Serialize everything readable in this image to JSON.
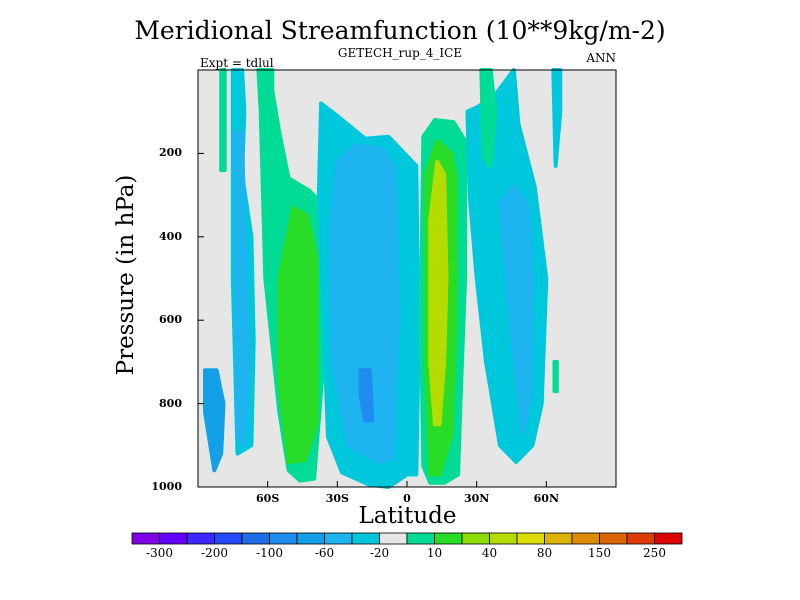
{
  "chart_data": {
    "type": "heatmap",
    "title": "Meridional Streamfunction (10**9kg/m-2)",
    "subtitle": "GETECH_rup_4_ICE",
    "left_label": "Expt = tdlul",
    "right_label": "ANN",
    "xlabel": "Latitude",
    "ylabel": "Pressure (in hPa)",
    "xlim": [
      -90,
      90
    ],
    "ylim": [
      0,
      1000
    ],
    "y_inverted": true,
    "x_ticks": [
      {
        "value": -60,
        "label": "60S"
      },
      {
        "value": -30,
        "label": "30S"
      },
      {
        "value": 0,
        "label": "0"
      },
      {
        "value": 30,
        "label": "30N"
      },
      {
        "value": 60,
        "label": "60N"
      }
    ],
    "y_ticks": [
      {
        "value": 200,
        "label": "200"
      },
      {
        "value": 400,
        "label": "400"
      },
      {
        "value": 600,
        "label": "600"
      },
      {
        "value": 800,
        "label": "800"
      },
      {
        "value": 1000,
        "label": "1000"
      }
    ],
    "background_color": "#e6e6e6",
    "colorbar": {
      "colors": [
        "#7d00e6",
        "#6400ff",
        "#3c28ff",
        "#2348ff",
        "#1e6ee6",
        "#1e8cf0",
        "#14a0e6",
        "#1eb4f0",
        "#00c8dc",
        "#e6e6e6",
        "#00dc96",
        "#28dc28",
        "#8cdc00",
        "#b4dc00",
        "#dcdc00",
        "#dcb400",
        "#dc8c00",
        "#dc6400",
        "#dc3c00",
        "#dc0000"
      ],
      "labels": [
        {
          "edge": 1,
          "label": "-300"
        },
        {
          "edge": 3,
          "label": "-200"
        },
        {
          "edge": 5,
          "label": "-100"
        },
        {
          "edge": 7,
          "label": "-60"
        },
        {
          "edge": 9,
          "label": "-20"
        },
        {
          "edge": 11,
          "label": "10"
        },
        {
          "edge": 13,
          "label": "40"
        },
        {
          "edge": 15,
          "label": "80"
        },
        {
          "edge": 17,
          "label": "150"
        },
        {
          "edge": 19,
          "label": "250"
        }
      ]
    },
    "regions": [
      {
        "name": "sh-polar-cell-outer",
        "color": "#14a0e6",
        "x": [
          -87,
          -82,
          -79,
          -80,
          -83,
          -87
        ],
        "p": [
          720,
          720,
          800,
          920,
          960,
          820
        ]
      },
      {
        "name": "sh-polar-cell",
        "color": "#00c8dc",
        "x": [
          -75,
          -71,
          -70,
          -71,
          -67,
          -66,
          -67,
          -73,
          -75
        ],
        "p": [
          0,
          0,
          100,
          250,
          400,
          650,
          900,
          920,
          500
        ]
      },
      {
        "name": "sh-polar-core",
        "color": "#1eb4f0",
        "x": [
          -74,
          -71,
          -70,
          -68,
          -70,
          -73
        ],
        "p": [
          150,
          150,
          400,
          700,
          900,
          880
        ]
      },
      {
        "name": "sh-ferrel-cell",
        "color": "#00dc96",
        "x": [
          -64,
          -58,
          -58,
          -55,
          -51,
          -42,
          -37,
          -36,
          -40,
          -46,
          -51,
          -55,
          -61,
          -63
        ],
        "p": [
          0,
          0,
          50,
          150,
          260,
          290,
          320,
          700,
          980,
          985,
          960,
          820,
          500,
          100
        ]
      },
      {
        "name": "sh-ferrel-core",
        "color": "#28dc28",
        "x": [
          -55,
          -49,
          -43,
          -39,
          -39,
          -44,
          -51,
          -55
        ],
        "p": [
          500,
          330,
          350,
          450,
          850,
          935,
          940,
          750
        ]
      },
      {
        "name": "sh-hadley-cell",
        "color": "#00c8dc",
        "x": [
          -37,
          -30,
          -18,
          -8,
          -2,
          4,
          5,
          4,
          0,
          -8,
          -16,
          -28,
          -34,
          -38
        ],
        "p": [
          80,
          110,
          165,
          160,
          195,
          230,
          650,
          970,
          970,
          1000,
          995,
          965,
          880,
          300
        ]
      },
      {
        "name": "sh-hadley-core",
        "color": "#1eb4f0",
        "x": [
          -30,
          -22,
          -10,
          -5,
          -4,
          -6,
          -12,
          -25,
          -32,
          -33
        ],
        "p": [
          220,
          180,
          190,
          240,
          600,
          930,
          940,
          900,
          700,
          400
        ]
      },
      {
        "name": "sh-hadley-max",
        "color": "#1e8cf0",
        "x": [
          -20,
          -16,
          -15,
          -18,
          -20
        ],
        "p": [
          720,
          720,
          840,
          840,
          780
        ]
      },
      {
        "name": "nh-hadley-cell",
        "color": "#00dc96",
        "x": [
          7,
          12,
          20,
          25,
          25,
          23,
          22,
          16,
          10,
          7,
          6
        ],
        "p": [
          160,
          120,
          125,
          170,
          500,
          800,
          970,
          990,
          990,
          950,
          600
        ]
      },
      {
        "name": "nh-hadley-core",
        "color": "#28dc28",
        "x": [
          8,
          13,
          19,
          21,
          21,
          19,
          14,
          10,
          8
        ],
        "p": [
          250,
          170,
          200,
          260,
          600,
          880,
          970,
          970,
          700
        ]
      },
      {
        "name": "nh-hadley-max",
        "color": "#b4dc00",
        "x": [
          10,
          13,
          16,
          17,
          16,
          14,
          12,
          10
        ],
        "p": [
          360,
          220,
          250,
          500,
          700,
          850,
          850,
          700
        ]
      },
      {
        "name": "nh-ferrel-cell",
        "color": "#00c8dc",
        "x": [
          26,
          30,
          38,
          46,
          48,
          55,
          60,
          58,
          54,
          47,
          40,
          34,
          30,
          27
        ],
        "p": [
          100,
          90,
          60,
          0,
          130,
          280,
          500,
          800,
          900,
          940,
          900,
          700,
          500,
          300
        ]
      },
      {
        "name": "nh-ferrel-core",
        "color": "#1eb4f0",
        "x": [
          40,
          46,
          52,
          54,
          53,
          50,
          46
        ],
        "p": [
          320,
          280,
          320,
          500,
          780,
          870,
          680
        ]
      },
      {
        "name": "nh-upper-cell",
        "color": "#00dc96",
        "x": [
          32,
          36,
          38,
          36,
          33
        ],
        "p": [
          0,
          0,
          100,
          230,
          210
        ]
      },
      {
        "name": "nh-polar-upper",
        "color": "#00c8dc",
        "x": [
          63,
          66,
          66,
          64
        ],
        "p": [
          0,
          0,
          100,
          230
        ]
      },
      {
        "name": "nh-polar-tick",
        "color": "#00dc96",
        "x": [
          63.5,
          64.5,
          64.5,
          63.5
        ],
        "p": [
          700,
          700,
          770,
          770
        ]
      },
      {
        "name": "sh-polar-left-strip",
        "color": "#00dc96",
        "x": [
          -80,
          -78.5,
          -78.5,
          -80
        ],
        "p": [
          0,
          0,
          240,
          240
        ]
      }
    ]
  }
}
